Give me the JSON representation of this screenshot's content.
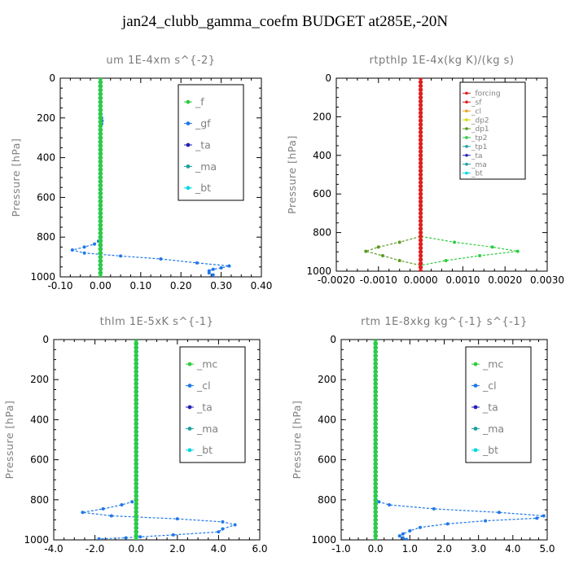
{
  "main_title": "jan24_clubb_gamma_coefm  BUDGET at285E,-20N",
  "colors": {
    "green": "#2ecc40",
    "blue": "#1f78e8",
    "navy": "#2222b8",
    "cyan": "#00d8e0",
    "red": "#e02020",
    "orange": "#f0a020",
    "yellow": "#d8d800",
    "olive": "#5a9a20",
    "teal": "#1aa0a0"
  },
  "chart_data": [
    {
      "type": "line",
      "title": "um  1E-4xm s^{-2}",
      "ylabel": "Pressure [hPa]",
      "xlim": [
        -0.1,
        0.4
      ],
      "ylim": [
        1000,
        0
      ],
      "x_ticks": [
        "-0.10",
        "0.00",
        "0.10",
        "0.20",
        "0.30",
        "0.40"
      ],
      "y_ticks": [
        "0",
        "200",
        "400",
        "600",
        "800",
        "1000"
      ],
      "legend": {
        "position": "top-right",
        "entries": [
          "_f",
          "_gf",
          "_ta",
          "_ma",
          "_bt"
        ]
      },
      "series": [
        {
          "name": "_gf",
          "color": "blue",
          "points": [
            [
              0,
              0
            ],
            [
              0,
              180
            ],
            [
              0,
              190
            ],
            [
              0.003,
              200
            ],
            [
              0.004,
              215
            ],
            [
              0.003,
              230
            ],
            [
              0,
              245
            ],
            [
              0,
              600
            ],
            [
              0,
              800
            ],
            [
              -0.005,
              820
            ],
            [
              -0.015,
              835
            ],
            [
              -0.04,
              850
            ],
            [
              -0.07,
              865
            ],
            [
              -0.04,
              880
            ],
            [
              0.05,
              895
            ],
            [
              0.15,
              910
            ],
            [
              0.24,
              930
            ],
            [
              0.32,
              945
            ],
            [
              0.3,
              955
            ],
            [
              0.28,
              962
            ],
            [
              0.27,
              970
            ],
            [
              0.27,
              980
            ],
            [
              0.28,
              990
            ],
            [
              0.28,
              1000
            ]
          ]
        },
        {
          "name": "_ta",
          "color": "navy",
          "points": [
            [
              0,
              0
            ],
            [
              0,
              1000
            ]
          ]
        },
        {
          "name": "_ma",
          "color": "teal",
          "points": [
            [
              0,
              0
            ],
            [
              0,
              1000
            ]
          ]
        },
        {
          "name": "_bt",
          "color": "cyan",
          "points": [
            [
              0,
              0
            ],
            [
              0,
              1000
            ]
          ]
        },
        {
          "name": "_f",
          "color": "green",
          "points": [
            [
              0,
              0
            ],
            [
              0,
              1000
            ]
          ]
        }
      ]
    },
    {
      "type": "line",
      "title": "rtpthlp  1E-4x(kg K)/(kg s)",
      "ylabel": "Pressure [hPa]",
      "xlim": [
        -0.002,
        0.003
      ],
      "ylim": [
        1000,
        0
      ],
      "x_ticks": [
        "-0.0020",
        "-0.0010",
        "0.0000",
        "0.0010",
        "0.0020",
        "0.0030"
      ],
      "y_ticks": [
        "0",
        "200",
        "400",
        "600",
        "800",
        "1000"
      ],
      "legend": {
        "position": "top-right",
        "entries": [
          "_forcing",
          "_sf",
          "_cl",
          "_dp2",
          "_dp1",
          "_tp2",
          "_tp1",
          "_ta",
          "_ma",
          "_bt"
        ]
      },
      "series": [
        {
          "name": "_dp1",
          "color": "olive",
          "points": [
            [
              0,
              0
            ],
            [
              0,
              820
            ],
            [
              -0.0005,
              850
            ],
            [
              -0.001,
              875
            ],
            [
              -0.0013,
              897
            ],
            [
              -0.0009,
              920
            ],
            [
              -0.0005,
              945
            ],
            [
              0,
              970
            ],
            [
              0,
              1000
            ]
          ]
        },
        {
          "name": "_tp2",
          "color": "green",
          "points": [
            [
              0,
              0
            ],
            [
              0,
              820
            ],
            [
              0.0008,
              850
            ],
            [
              0.0017,
              875
            ],
            [
              0.0023,
              897
            ],
            [
              0.0014,
              920
            ],
            [
              0.0006,
              945
            ],
            [
              0,
              970
            ],
            [
              0,
              1000
            ]
          ]
        },
        {
          "name": "_forcing",
          "color": "red",
          "points": [
            [
              0,
              0
            ],
            [
              0,
              1000
            ]
          ]
        }
      ]
    },
    {
      "type": "line",
      "title": "thlm  1E-5xK s^{-1}",
      "ylabel": "Pressure [hPa]",
      "xlim": [
        -4.0,
        6.0
      ],
      "ylim": [
        1000,
        0
      ],
      "x_ticks": [
        "-4.0",
        "-2.0",
        "0.0",
        "2.0",
        "4.0",
        "6.0"
      ],
      "y_ticks": [
        "0",
        "200",
        "400",
        "600",
        "800",
        "1000"
      ],
      "legend": {
        "position": "top-right",
        "entries": [
          "_mc",
          "_cl",
          "_ta",
          "_ma",
          "_bt"
        ]
      },
      "series": [
        {
          "name": "_cl",
          "color": "blue",
          "points": [
            [
              0,
              0
            ],
            [
              0,
              790
            ],
            [
              -0.2,
              810
            ],
            [
              -0.7,
              825
            ],
            [
              -1.6,
              845
            ],
            [
              -2.6,
              863
            ],
            [
              -1.2,
              880
            ],
            [
              2.0,
              895
            ],
            [
              4.2,
              910
            ],
            [
              4.8,
              925
            ],
            [
              4.2,
              945
            ],
            [
              4.0,
              960
            ],
            [
              1.8,
              975
            ],
            [
              0.2,
              985
            ],
            [
              -0.5,
              990
            ],
            [
              -1.8,
              995
            ]
          ]
        },
        {
          "name": "_ta",
          "color": "navy",
          "points": [
            [
              0,
              0
            ],
            [
              0,
              1000
            ]
          ]
        },
        {
          "name": "_ma",
          "color": "teal",
          "points": [
            [
              0,
              0
            ],
            [
              0,
              1000
            ]
          ]
        },
        {
          "name": "_bt",
          "color": "cyan",
          "points": [
            [
              0,
              0
            ],
            [
              0,
              1000
            ]
          ]
        },
        {
          "name": "_mc",
          "color": "green",
          "points": [
            [
              0,
              0
            ],
            [
              0,
              1000
            ]
          ]
        }
      ]
    },
    {
      "type": "line",
      "title": "rtm  1E-8xkg kg^{-1} s^{-1}",
      "ylabel": "Pressure [hPa]",
      "xlim": [
        -1.0,
        5.0
      ],
      "ylim": [
        1000,
        0
      ],
      "x_ticks": [
        "-1.0",
        "0.0",
        "1.0",
        "2.0",
        "3.0",
        "4.0",
        "5.0"
      ],
      "y_ticks": [
        "0",
        "200",
        "400",
        "600",
        "800",
        "1000"
      ],
      "legend": {
        "position": "top-right",
        "entries": [
          "_mc",
          "_cl",
          "_ta",
          "_ma",
          "_bt"
        ]
      },
      "series": [
        {
          "name": "_cl",
          "color": "blue",
          "points": [
            [
              0,
              0
            ],
            [
              0,
              790
            ],
            [
              0.1,
              810
            ],
            [
              0.4,
              825
            ],
            [
              1.7,
              845
            ],
            [
              3.6,
              863
            ],
            [
              4.9,
              880
            ],
            [
              4.7,
              892
            ],
            [
              3.2,
              905
            ],
            [
              2.1,
              920
            ],
            [
              1.3,
              938
            ],
            [
              1.0,
              955
            ],
            [
              0.8,
              970
            ],
            [
              0.7,
              980
            ],
            [
              0.8,
              990
            ],
            [
              0.9,
              998
            ]
          ]
        },
        {
          "name": "_ta",
          "color": "navy",
          "points": [
            [
              0,
              0
            ],
            [
              0,
              1000
            ]
          ]
        },
        {
          "name": "_ma",
          "color": "teal",
          "points": [
            [
              0,
              0
            ],
            [
              0,
              1000
            ]
          ]
        },
        {
          "name": "_bt",
          "color": "cyan",
          "points": [
            [
              0,
              0
            ],
            [
              0,
              1000
            ]
          ]
        },
        {
          "name": "_mc",
          "color": "green",
          "points": [
            [
              0,
              0
            ],
            [
              0,
              1000
            ]
          ]
        }
      ]
    }
  ]
}
